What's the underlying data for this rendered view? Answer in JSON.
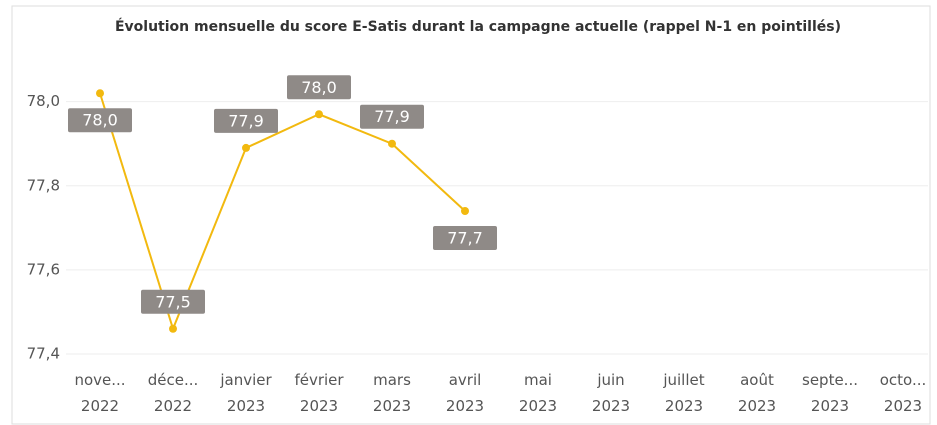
{
  "chart_data": {
    "type": "line",
    "title": "Évolution mensuelle du score E-Satis durant la campagne actuelle (rappel N-1 en pointillés)",
    "categories": [
      "nove...\n2022",
      "déce...\n2022",
      "janvier\n2023",
      "février\n2023",
      "mars\n2023",
      "avril\n2023",
      "mai\n2023",
      "juin\n2023",
      "juillet\n2023",
      "août\n2023",
      "septe...\n2023",
      "octo...\n2023"
    ],
    "series": [
      {
        "color": "#f2b90f",
        "values": [
          78.02,
          77.46,
          77.89,
          77.97,
          77.9,
          77.74,
          null,
          null,
          null,
          null,
          null,
          null
        ],
        "value_labels": [
          "78,0",
          "77,5",
          "77,9",
          "78,0",
          "77,9",
          "77,7",
          null,
          null,
          null,
          null,
          null,
          null
        ]
      }
    ],
    "ylim": [
      77.4,
      78.08
    ],
    "yticks": [
      {
        "value": 77.4,
        "label": "77,4"
      },
      {
        "value": 77.6,
        "label": "77,6"
      },
      {
        "value": 77.8,
        "label": "77,8"
      },
      {
        "value": 78.0,
        "label": "78,0"
      }
    ],
    "grid": true
  }
}
